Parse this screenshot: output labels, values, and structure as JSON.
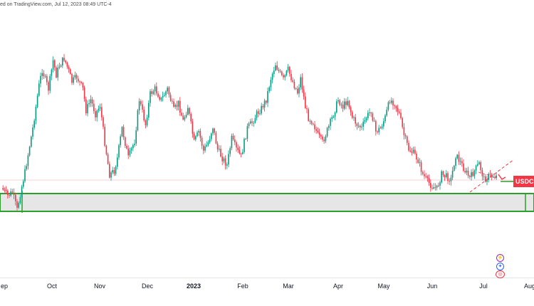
{
  "header": {
    "text": "ed on TradingView.com, Jul 12, 2023 08:49 UTC-4"
  },
  "price_tag": {
    "label": "USDCAD"
  },
  "x_axis": {
    "labels": [
      {
        "text": "ep",
        "bold": false
      },
      {
        "text": "Oct",
        "bold": false
      },
      {
        "text": "Nov",
        "bold": false
      },
      {
        "text": "Dec",
        "bold": false
      },
      {
        "text": "2023",
        "bold": true
      },
      {
        "text": "Feb",
        "bold": false
      },
      {
        "text": "Mar",
        "bold": false
      },
      {
        "text": "Apr",
        "bold": false
      },
      {
        "text": "May",
        "bold": false
      },
      {
        "text": "Jun",
        "bold": false
      },
      {
        "text": "Jul",
        "bold": false
      },
      {
        "text": "Aug",
        "bold": false
      }
    ]
  },
  "events": [
    {
      "icon": "lightning-icon"
    },
    {
      "icon": "flag-icon"
    },
    {
      "icon": "dividends-icon"
    }
  ],
  "colors": {
    "up": "#089981",
    "down": "#f23645",
    "zone": "#2e9e2e",
    "zone_fill": "#e6e6e6",
    "trendline": "#f23645"
  },
  "chart_data": {
    "type": "candlestick",
    "symbol": "USDCAD",
    "timeframe": "daily",
    "anchors": [
      [
        0,
        264
      ],
      [
        4,
        275
      ],
      [
        7,
        270
      ],
      [
        10,
        295
      ],
      [
        12,
        272
      ],
      [
        15,
        242
      ],
      [
        20,
        180
      ],
      [
        24,
        120
      ],
      [
        26,
        98
      ],
      [
        30,
        125
      ],
      [
        33,
        85
      ],
      [
        35,
        105
      ],
      [
        37,
        92
      ],
      [
        40,
        82
      ],
      [
        43,
        100
      ],
      [
        45,
        115
      ],
      [
        48,
        108
      ],
      [
        52,
        125
      ],
      [
        54,
        155
      ],
      [
        57,
        140
      ],
      [
        60,
        160
      ],
      [
        63,
        148
      ],
      [
        66,
        200
      ],
      [
        69,
        245
      ],
      [
        72,
        240
      ],
      [
        74,
        222
      ],
      [
        77,
        180
      ],
      [
        81,
        222
      ],
      [
        85,
        198
      ],
      [
        88,
        140
      ],
      [
        92,
        175
      ],
      [
        95,
        132
      ],
      [
        98,
        125
      ],
      [
        102,
        140
      ],
      [
        106,
        125
      ],
      [
        110,
        155
      ],
      [
        113,
        145
      ],
      [
        116,
        170
      ],
      [
        119,
        150
      ],
      [
        123,
        200
      ],
      [
        126,
        185
      ],
      [
        129,
        212
      ],
      [
        132,
        200
      ],
      [
        135,
        178
      ],
      [
        138,
        210
      ],
      [
        141,
        222
      ],
      [
        144,
        232
      ],
      [
        147,
        195
      ],
      [
        150,
        210
      ],
      [
        153,
        220
      ],
      [
        157,
        180
      ],
      [
        160,
        172
      ],
      [
        163,
        160
      ],
      [
        166,
        152
      ],
      [
        169,
        140
      ],
      [
        172,
        110
      ],
      [
        175,
        90
      ],
      [
        177,
        100
      ],
      [
        180,
        112
      ],
      [
        183,
        98
      ],
      [
        186,
        115
      ],
      [
        189,
        130
      ],
      [
        191,
        110
      ],
      [
        194,
        150
      ],
      [
        196,
        165
      ],
      [
        199,
        172
      ],
      [
        202,
        190
      ],
      [
        205,
        200
      ],
      [
        209,
        178
      ],
      [
        212,
        160
      ],
      [
        215,
        140
      ],
      [
        218,
        150
      ],
      [
        221,
        140
      ],
      [
        224,
        165
      ],
      [
        227,
        175
      ],
      [
        230,
        180
      ],
      [
        233,
        165
      ],
      [
        236,
        155
      ],
      [
        239,
        185
      ],
      [
        242,
        180
      ],
      [
        245,
        165
      ],
      [
        248,
        140
      ],
      [
        251,
        145
      ],
      [
        254,
        160
      ],
      [
        257,
        190
      ],
      [
        260,
        210
      ],
      [
        263,
        215
      ],
      [
        266,
        225
      ],
      [
        269,
        245
      ],
      [
        272,
        255
      ],
      [
        275,
        262
      ],
      [
        278,
        265
      ],
      [
        281,
        245
      ],
      [
        284,
        248
      ],
      [
        287,
        252
      ],
      [
        290,
        218
      ],
      [
        293,
        228
      ],
      [
        296,
        240
      ],
      [
        299,
        250
      ],
      [
        302,
        240
      ],
      [
        305,
        230
      ],
      [
        308,
        252
      ],
      [
        311,
        248
      ],
      [
        314,
        247
      ],
      [
        316,
        248
      ]
    ],
    "price_line_level": 255,
    "zone": {
      "top": 272,
      "bottom": 297
    }
  }
}
